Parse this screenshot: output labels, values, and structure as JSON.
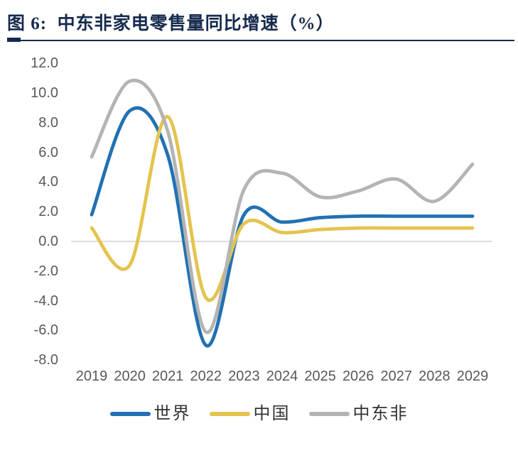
{
  "figure": {
    "title": "图 6:  中东非家电零售量同比增速（%）",
    "title_color": "#162a4e",
    "accent_color": "#162a4e"
  },
  "axis_style": {
    "text_color": "#595959",
    "zero_line_color": "#c8c8c8"
  },
  "chart_data": {
    "type": "line",
    "smooth": true,
    "title": "中东非家电零售量同比增速（%）",
    "xlabel": "",
    "ylabel": "",
    "categories": [
      "2019",
      "2020",
      "2021",
      "2022",
      "2023",
      "2024",
      "2025",
      "2026",
      "2027",
      "2028",
      "2029"
    ],
    "series": [
      {
        "key": "world",
        "name": "世界",
        "color": "#2271b3",
        "values": [
          1.8,
          8.8,
          5.8,
          -7.0,
          1.8,
          1.3,
          1.6,
          1.7,
          1.7,
          1.7,
          1.7
        ]
      },
      {
        "key": "china",
        "name": "中国",
        "color": "#e4c44f",
        "values": [
          0.9,
          -1.6,
          8.4,
          -3.8,
          1.2,
          0.6,
          0.8,
          0.9,
          0.9,
          0.9,
          0.9
        ]
      },
      {
        "key": "mea",
        "name": "中东非",
        "color": "#b4b4b4",
        "values": [
          5.7,
          10.8,
          7.4,
          -6.1,
          3.5,
          4.6,
          3.0,
          3.4,
          4.2,
          2.7,
          5.2
        ]
      }
    ],
    "y_tick_labels": [
      "12.0",
      "10.0",
      "8.0",
      "6.0",
      "4.0",
      "2.0",
      "0.0",
      "-2.0",
      "-4.0",
      "-6.0",
      "-8.0"
    ],
    "y_tick_values": [
      12,
      10,
      8,
      6,
      4,
      2,
      0,
      -2,
      -4,
      -6,
      -8
    ],
    "ylim": [
      -8,
      12
    ],
    "grid": "zero-line-only",
    "legend_position": "bottom"
  }
}
